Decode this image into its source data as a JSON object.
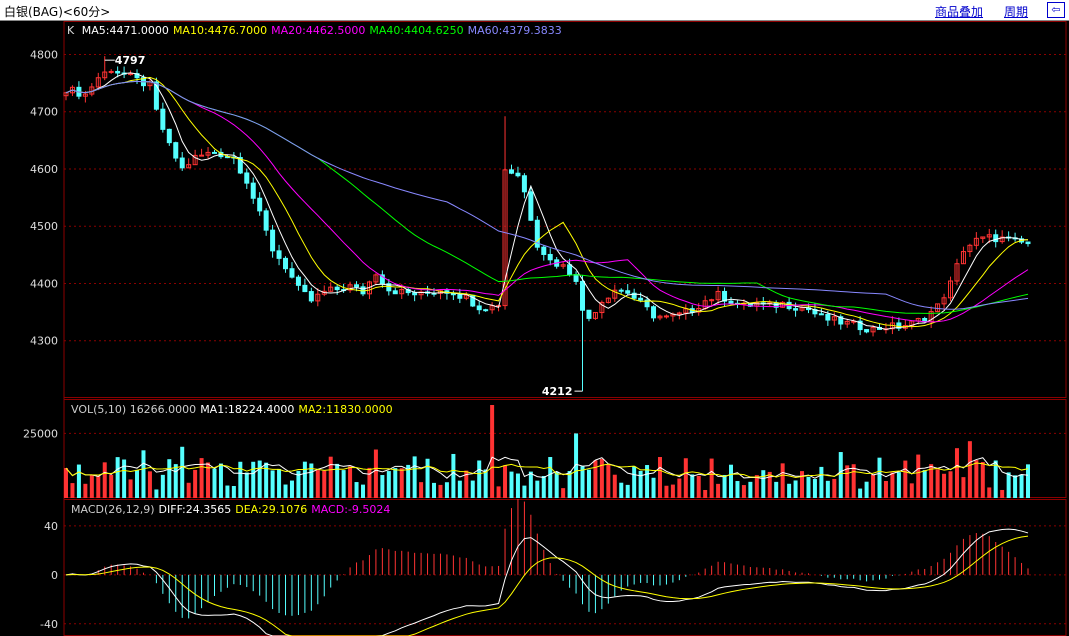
{
  "header": {
    "title": "白银(BAG)<60分>",
    "overlay_link": "商品叠加",
    "period_link": "周期",
    "nav_icon": "⇦"
  },
  "chart_data": {
    "type": "candlestick",
    "colors": {
      "up": "#ff3333",
      "down": "#55ffff",
      "ma5": "#ffffff",
      "ma10": "#ffff00",
      "ma20": "#ff00ff",
      "ma40": "#00ff00",
      "ma60": "#8888ff",
      "grid": "#8b0000"
    },
    "price_panel": {
      "label": "K",
      "legend": [
        {
          "name": "MA5:4471.0000",
          "color": "#ffffff"
        },
        {
          "name": "MA10:4476.7000",
          "color": "#ffff00"
        },
        {
          "name": "MA20:4462.5000",
          "color": "#ff00ff"
        },
        {
          "name": "MA40:4404.6250",
          "color": "#00ff00"
        },
        {
          "name": "MA60:4379.3833",
          "color": "#8888ff"
        }
      ],
      "ylim": [
        4200,
        4820
      ],
      "yticks": [
        4300,
        4400,
        4500,
        4600,
        4700,
        4800
      ],
      "high_label": "4797",
      "high_index": 6,
      "low_label": "4212",
      "low_index": 80,
      "anchors": [
        [
          0,
          4740
        ],
        [
          3,
          4730
        ],
        [
          5,
          4760
        ],
        [
          7,
          4775
        ],
        [
          11,
          4755
        ],
        [
          13,
          4745
        ],
        [
          14,
          4700
        ],
        [
          16,
          4640
        ],
        [
          18,
          4600
        ],
        [
          20,
          4620
        ],
        [
          23,
          4630
        ],
        [
          26,
          4620
        ],
        [
          28,
          4580
        ],
        [
          30,
          4520
        ],
        [
          32,
          4460
        ],
        [
          34,
          4430
        ],
        [
          36,
          4390
        ],
        [
          38,
          4370
        ],
        [
          40,
          4385
        ],
        [
          42,
          4390
        ],
        [
          44,
          4395
        ],
        [
          46,
          4385
        ],
        [
          48,
          4420
        ],
        [
          50,
          4390
        ],
        [
          52,
          4385
        ],
        [
          55,
          4380
        ],
        [
          58,
          4390
        ],
        [
          60,
          4385
        ],
        [
          62,
          4375
        ],
        [
          64,
          4360
        ],
        [
          66,
          4360
        ],
        [
          67,
          4365
        ],
        [
          68,
          4600
        ],
        [
          70,
          4590
        ],
        [
          71,
          4560
        ],
        [
          73,
          4470
        ],
        [
          75,
          4440
        ],
        [
          77,
          4430
        ],
        [
          79,
          4410
        ],
        [
          80,
          4350
        ],
        [
          81,
          4340
        ],
        [
          83,
          4370
        ],
        [
          85,
          4390
        ],
        [
          87,
          4385
        ],
        [
          89,
          4365
        ],
        [
          91,
          4345
        ],
        [
          93,
          4340
        ],
        [
          95,
          4345
        ],
        [
          97,
          4355
        ],
        [
          99,
          4370
        ],
        [
          101,
          4380
        ],
        [
          103,
          4370
        ],
        [
          105,
          4360
        ],
        [
          107,
          4365
        ],
        [
          109,
          4360
        ],
        [
          111,
          4365
        ],
        [
          113,
          4360
        ],
        [
          115,
          4355
        ],
        [
          117,
          4340
        ],
        [
          119,
          4335
        ],
        [
          121,
          4330
        ],
        [
          123,
          4325
        ],
        [
          125,
          4320
        ],
        [
          127,
          4325
        ],
        [
          129,
          4325
        ],
        [
          131,
          4330
        ],
        [
          133,
          4340
        ],
        [
          135,
          4360
        ],
        [
          137,
          4400
        ],
        [
          139,
          4460
        ],
        [
          141,
          4475
        ],
        [
          143,
          4480
        ],
        [
          145,
          4478
        ],
        [
          147,
          4472
        ],
        [
          149,
          4470
        ]
      ]
    },
    "volume_panel": {
      "legend": [
        {
          "name": "VOL(5,10) 16266.0000",
          "color": "#cccccc"
        },
        {
          "name": "MA1:18224.4000",
          "color": "#ffffff"
        },
        {
          "name": "MA2:11830.0000",
          "color": "#ffff00"
        }
      ],
      "ylim": [
        0,
        36000
      ],
      "yticks": [
        25000
      ]
    },
    "macd_panel": {
      "legend": [
        {
          "name": "MACD(26,12,9)",
          "color": "#cccccc"
        },
        {
          "name": "DIFF:24.3565",
          "color": "#ffffff"
        },
        {
          "name": "DEA:29.1076",
          "color": "#ffff00"
        },
        {
          "name": "MACD:-9.5024",
          "color": "#ff00ff"
        }
      ],
      "ylim": [
        -50,
        62
      ],
      "yticks": [
        -40,
        0,
        40
      ]
    }
  }
}
